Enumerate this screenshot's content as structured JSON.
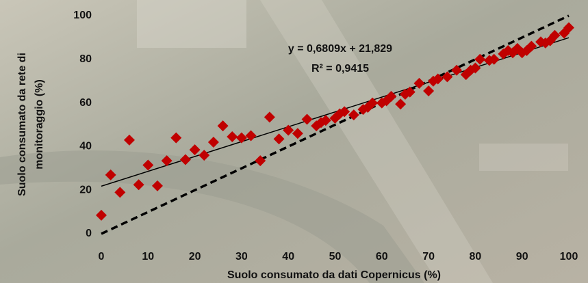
{
  "chart_data": {
    "type": "scatter",
    "x_label": "Suolo consumato da dati Copernicus (%)",
    "y_label": [
      "Suolo consumato da rete di",
      "monitoraggio (%)"
    ],
    "x": [
      0,
      2,
      4,
      6,
      8,
      10,
      12,
      14,
      16,
      18,
      20,
      22,
      24,
      26,
      28,
      30,
      32,
      34,
      36,
      38,
      40,
      42,
      44,
      46,
      47,
      48,
      50,
      51,
      52,
      54,
      56,
      57,
      58,
      60,
      61,
      62,
      64,
      65,
      66,
      68,
      70,
      71,
      72,
      74,
      76,
      78,
      79,
      80,
      81,
      83,
      84,
      86,
      87,
      88,
      89,
      90,
      91,
      92,
      94,
      95,
      96,
      97,
      99,
      100
    ],
    "y": [
      8.5,
      27,
      19,
      43,
      22.5,
      31.5,
      22,
      33.5,
      44,
      34,
      38.5,
      36,
      42,
      49.5,
      44.5,
      44,
      45,
      33.5,
      53.5,
      43.5,
      47.5,
      46,
      52.5,
      49.5,
      51,
      52,
      53,
      55,
      56,
      54.5,
      57,
      58,
      60,
      60,
      61,
      63,
      59.5,
      64,
      65,
      69,
      65.5,
      70,
      71,
      72,
      75,
      73,
      75,
      76,
      80,
      79.5,
      80,
      82.5,
      84,
      83,
      85,
      83,
      84,
      86,
      88,
      87.5,
      88.5,
      91,
      92,
      94.5
    ],
    "color": "#c00000",
    "xlim": [
      0,
      100
    ],
    "ylim": [
      0,
      100
    ],
    "xticks": [
      0,
      10,
      20,
      30,
      40,
      50,
      60,
      70,
      80,
      90,
      100
    ],
    "yticks": [
      0,
      20,
      40,
      60,
      80,
      100
    ],
    "trendline": {
      "label": "y = 0,6809x + 21,829",
      "r2_label": "R² = 0,9415",
      "slope": 0.6809,
      "intercept": 21.829
    },
    "identity_line": {
      "x": [
        0,
        100
      ],
      "y": [
        0,
        100
      ]
    }
  }
}
